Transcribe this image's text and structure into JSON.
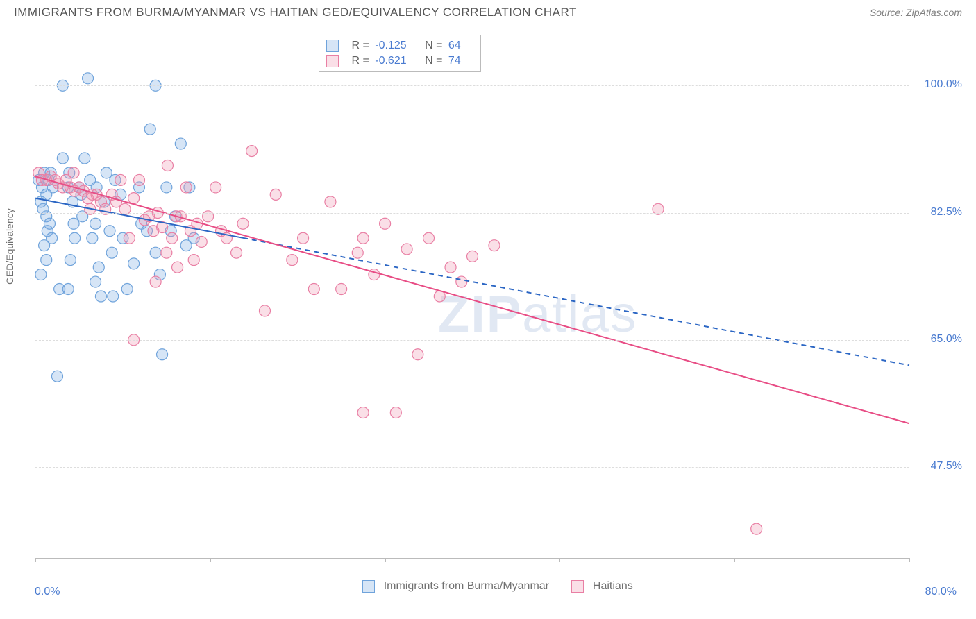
{
  "header": {
    "title": "IMMIGRANTS FROM BURMA/MYANMAR VS HAITIAN GED/EQUIVALENCY CORRELATION CHART",
    "source": "Source: ZipAtlas.com"
  },
  "watermark": {
    "zip": "ZIP",
    "atlas": "atlas"
  },
  "chart": {
    "type": "scatter",
    "ylabel": "GED/Equivalency",
    "xlim": [
      0,
      80
    ],
    "ylim": [
      35,
      107
    ],
    "xtick_positions": [
      0,
      16,
      32,
      48,
      64,
      80
    ],
    "x_axis_labels": {
      "min": "0.0%",
      "max": "80.0%"
    },
    "y_ticks": [
      {
        "v": 100.0,
        "label": "100.0%"
      },
      {
        "v": 82.5,
        "label": "82.5%"
      },
      {
        "v": 65.0,
        "label": "65.0%"
      },
      {
        "v": 47.5,
        "label": "47.5%"
      }
    ],
    "grid_y": [
      100.0,
      82.5,
      65.0,
      47.5
    ],
    "grid_color": "#dddddd",
    "axis_color": "#bbbbbb",
    "tick_label_color": "#4a7bd0",
    "background_color": "#ffffff",
    "marker_radius": 8,
    "series": [
      {
        "id": "burma",
        "name": "Immigrants from Burma/Myanmar",
        "fill": "rgba(120,170,225,0.30)",
        "stroke": "#6fa3db",
        "R": "-0.125",
        "N": "64",
        "trend": {
          "x1": 0,
          "y1": 84.5,
          "x2": 80,
          "y2": 61.5,
          "solid_until_x": 19,
          "color": "#2b66c4",
          "width": 2
        },
        "points": [
          [
            0.3,
            87
          ],
          [
            0.6,
            86
          ],
          [
            0.8,
            88
          ],
          [
            1.0,
            85
          ],
          [
            1.2,
            87
          ],
          [
            1.4,
            88
          ],
          [
            1.6,
            86
          ],
          [
            0.5,
            84
          ],
          [
            0.7,
            83
          ],
          [
            1.0,
            82
          ],
          [
            1.1,
            80
          ],
          [
            1.3,
            81
          ],
          [
            2.5,
            90
          ],
          [
            2.5,
            100
          ],
          [
            3.0,
            86
          ],
          [
            3.1,
            88
          ],
          [
            3.4,
            84
          ],
          [
            3.5,
            81
          ],
          [
            3.6,
            79
          ],
          [
            4.0,
            86
          ],
          [
            4.2,
            85
          ],
          [
            4.3,
            82
          ],
          [
            4.5,
            90
          ],
          [
            4.8,
            101
          ],
          [
            5.0,
            87
          ],
          [
            5.2,
            79
          ],
          [
            5.5,
            81
          ],
          [
            5.6,
            86
          ],
          [
            5.8,
            75
          ],
          [
            6.3,
            84
          ],
          [
            6.5,
            88
          ],
          [
            6.8,
            80
          ],
          [
            7.0,
            77
          ],
          [
            7.1,
            71
          ],
          [
            7.3,
            87
          ],
          [
            7.8,
            85
          ],
          [
            8.0,
            79
          ],
          [
            8.4,
            72
          ],
          [
            9.0,
            75.5
          ],
          [
            9.5,
            86
          ],
          [
            9.7,
            81
          ],
          [
            10.2,
            80
          ],
          [
            10.5,
            94
          ],
          [
            11.0,
            100
          ],
          [
            11.0,
            77
          ],
          [
            11.4,
            74
          ],
          [
            11.6,
            63
          ],
          [
            12.0,
            86
          ],
          [
            12.4,
            80
          ],
          [
            12.8,
            82
          ],
          [
            13.3,
            92
          ],
          [
            13.8,
            78
          ],
          [
            14.1,
            86
          ],
          [
            14.5,
            79
          ],
          [
            6.0,
            71
          ],
          [
            5.5,
            73
          ],
          [
            2.0,
            60
          ],
          [
            2.2,
            72
          ],
          [
            3.0,
            72
          ],
          [
            3.2,
            76
          ],
          [
            1.5,
            79
          ],
          [
            1.0,
            76
          ],
          [
            0.8,
            78
          ],
          [
            0.5,
            74
          ]
        ]
      },
      {
        "id": "haitian",
        "name": "Haitians",
        "fill": "rgba(240,150,175,0.30)",
        "stroke": "#e97fa4",
        "R": "-0.621",
        "N": "74",
        "trend": {
          "x1": 0,
          "y1": 87.5,
          "x2": 80,
          "y2": 53.5,
          "solid_until_x": 80,
          "color": "#e84d85",
          "width": 2
        },
        "points": [
          [
            0.3,
            88
          ],
          [
            0.6,
            87
          ],
          [
            1.0,
            87
          ],
          [
            1.4,
            87.5
          ],
          [
            1.8,
            87
          ],
          [
            2.1,
            86.5
          ],
          [
            2.5,
            86
          ],
          [
            2.8,
            87
          ],
          [
            3.2,
            86
          ],
          [
            3.6,
            85.5
          ],
          [
            4.0,
            86
          ],
          [
            4.4,
            85.5
          ],
          [
            4.8,
            84.5
          ],
          [
            5.2,
            85
          ],
          [
            5.6,
            85
          ],
          [
            6.0,
            84
          ],
          [
            6.4,
            83
          ],
          [
            7.0,
            85
          ],
          [
            7.4,
            84
          ],
          [
            7.8,
            87
          ],
          [
            8.2,
            83
          ],
          [
            8.6,
            79
          ],
          [
            9.0,
            84.5
          ],
          [
            9.5,
            87
          ],
          [
            10.0,
            81.5
          ],
          [
            10.4,
            82
          ],
          [
            10.8,
            80
          ],
          [
            11.2,
            82.5
          ],
          [
            11.6,
            80.5
          ],
          [
            12.1,
            89
          ],
          [
            12.5,
            79
          ],
          [
            12.9,
            82
          ],
          [
            13.3,
            82
          ],
          [
            13.8,
            86
          ],
          [
            14.2,
            80
          ],
          [
            14.8,
            81
          ],
          [
            15.2,
            78.5
          ],
          [
            15.8,
            82
          ],
          [
            16.5,
            86
          ],
          [
            17.0,
            80
          ],
          [
            17.5,
            79
          ],
          [
            18.4,
            77
          ],
          [
            19.0,
            81
          ],
          [
            19.8,
            91
          ],
          [
            21.0,
            69
          ],
          [
            22.0,
            85
          ],
          [
            23.5,
            76
          ],
          [
            24.5,
            79
          ],
          [
            25.5,
            72
          ],
          [
            27.0,
            84
          ],
          [
            28.0,
            72
          ],
          [
            29.5,
            77
          ],
          [
            30.0,
            79
          ],
          [
            31.0,
            74
          ],
          [
            32.0,
            81
          ],
          [
            33.0,
            55
          ],
          [
            34.0,
            77.5
          ],
          [
            35.0,
            63
          ],
          [
            36.0,
            79
          ],
          [
            37.0,
            71
          ],
          [
            38.0,
            75
          ],
          [
            39.0,
            73
          ],
          [
            40.0,
            76.5
          ],
          [
            42.0,
            78
          ],
          [
            12.0,
            77
          ],
          [
            13.0,
            75
          ],
          [
            14.5,
            76
          ],
          [
            9.0,
            65
          ],
          [
            11.0,
            73
          ],
          [
            30.0,
            55
          ],
          [
            57.0,
            83
          ],
          [
            66.0,
            39
          ],
          [
            3.5,
            88
          ],
          [
            5.0,
            83
          ]
        ]
      }
    ],
    "bottom_legend": [
      {
        "label": "Immigrants from Burma/Myanmar",
        "fill": "rgba(120,170,225,0.55)",
        "stroke": "#6fa3db"
      },
      {
        "label": "Haitians",
        "fill": "rgba(240,150,175,0.55)",
        "stroke": "#e97fa4"
      }
    ]
  }
}
